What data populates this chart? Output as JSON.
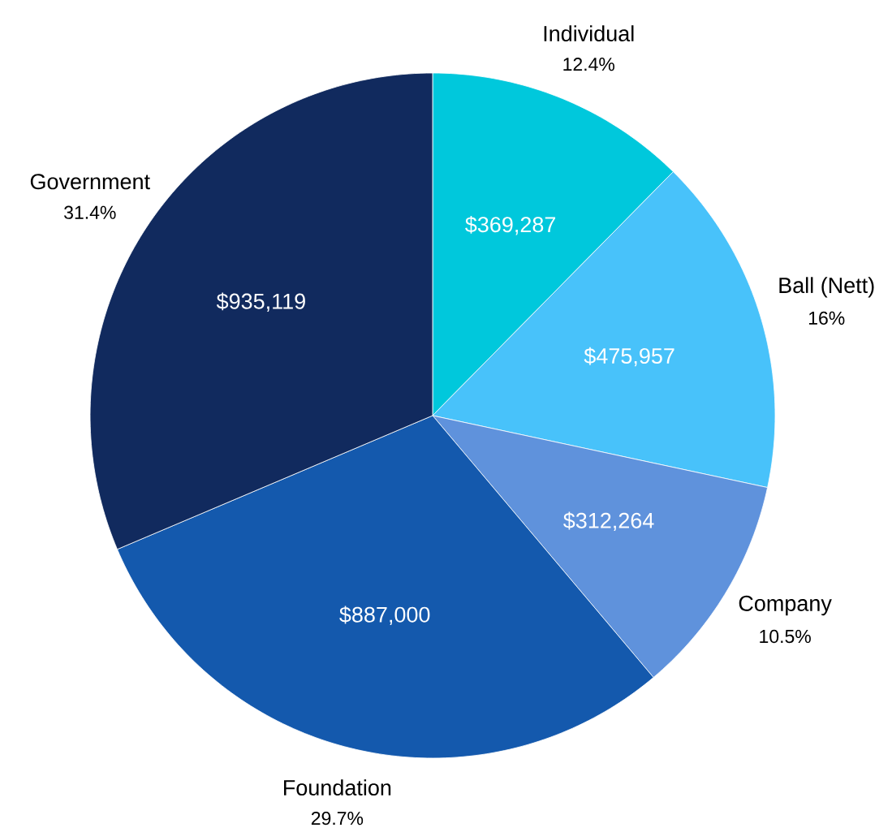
{
  "chart_data": {
    "type": "pie",
    "categories": [
      "Individual",
      "Ball (Nett)",
      "Company",
      "Foundation",
      "Government"
    ],
    "values": [
      369287,
      475957,
      312264,
      887000,
      935119
    ],
    "value_labels": [
      "$369,287",
      "$475,957",
      "$312,264",
      "$887,000",
      "$935,119"
    ],
    "colors": [
      "#00c8dc",
      "#48c2fa",
      "#5f92dc",
      "#1459ad",
      "#112a5e"
    ],
    "annotations": [
      "12.4%",
      "16%",
      "10.5%",
      "29.7%",
      "31.4%"
    ]
  }
}
